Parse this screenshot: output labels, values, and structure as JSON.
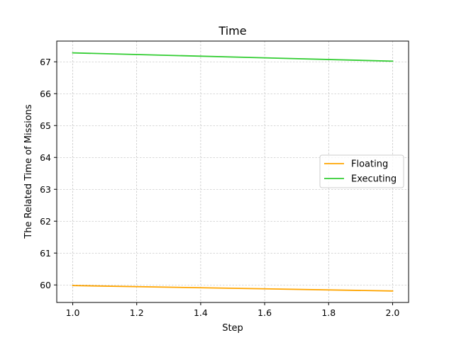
{
  "chart_data": {
    "type": "line",
    "title": "Time",
    "xlabel": "Step",
    "ylabel": "The Related Time of Missions",
    "xlim": [
      0.95,
      2.05
    ],
    "ylim": [
      59.45,
      67.65
    ],
    "x_ticks": [
      "1.0",
      "1.2",
      "1.4",
      "1.6",
      "1.8",
      "2.0"
    ],
    "y_ticks": [
      "60",
      "61",
      "62",
      "63",
      "64",
      "65",
      "66",
      "67"
    ],
    "grid": true,
    "legend_position": "center-right",
    "series": [
      {
        "name": "Floating",
        "color": "#ffa500",
        "x": [
          1.0,
          2.0
        ],
        "y": [
          59.98,
          59.81
        ]
      },
      {
        "name": "Executing",
        "color": "#32cd32",
        "x": [
          1.0,
          2.0
        ],
        "y": [
          67.28,
          67.02
        ]
      }
    ]
  }
}
